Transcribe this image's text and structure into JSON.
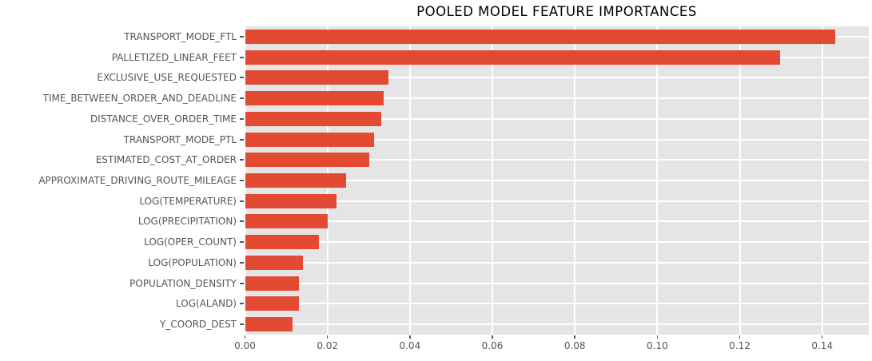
{
  "chart_data": {
    "type": "bar",
    "orientation": "horizontal",
    "title": "POOLED MODEL FEATURE IMPORTANCES",
    "categories": [
      "TRANSPORT_MODE_FTL",
      "PALLETIZED_LINEAR_FEET",
      "EXCLUSIVE_USE_REQUESTED",
      "TIME_BETWEEN_ORDER_AND_DEADLINE",
      "DISTANCE_OVER_ORDER_TIME",
      "TRANSPORT_MODE_PTL",
      "ESTIMATED_COST_AT_ORDER",
      "APPROXIMATE_DRIVING_ROUTE_MILEAGE",
      "LOG(TEMPERATURE)",
      "LOG(PRECIPITATION)",
      "LOG(OPER_COUNT)",
      "LOG(POPULATION)",
      "POPULATION_DENSITY",
      "LOG(ALAND)",
      "Y_COORD_DEST"
    ],
    "values": [
      0.1432,
      0.1297,
      0.0348,
      0.0336,
      0.033,
      0.0314,
      0.0301,
      0.0245,
      0.0222,
      0.02,
      0.018,
      0.0141,
      0.0131,
      0.0131,
      0.0116
    ],
    "xlabel": "",
    "ylabel": "",
    "xlim": [
      0,
      0.1513
    ],
    "xticks": [
      0,
      0.02,
      0.04,
      0.06,
      0.08,
      0.1,
      0.12,
      0.14
    ],
    "xtick_labels": [
      "0.00",
      "0.02",
      "0.04",
      "0.06",
      "0.08",
      "0.10",
      "0.12",
      "0.14"
    ],
    "grid": true,
    "legend": null,
    "colors": {
      "bar": "#E24A33",
      "plot_background": "#E5E5E5",
      "gridline": "#FFFFFF",
      "tick_label": "#555555",
      "title": "#000000"
    }
  }
}
